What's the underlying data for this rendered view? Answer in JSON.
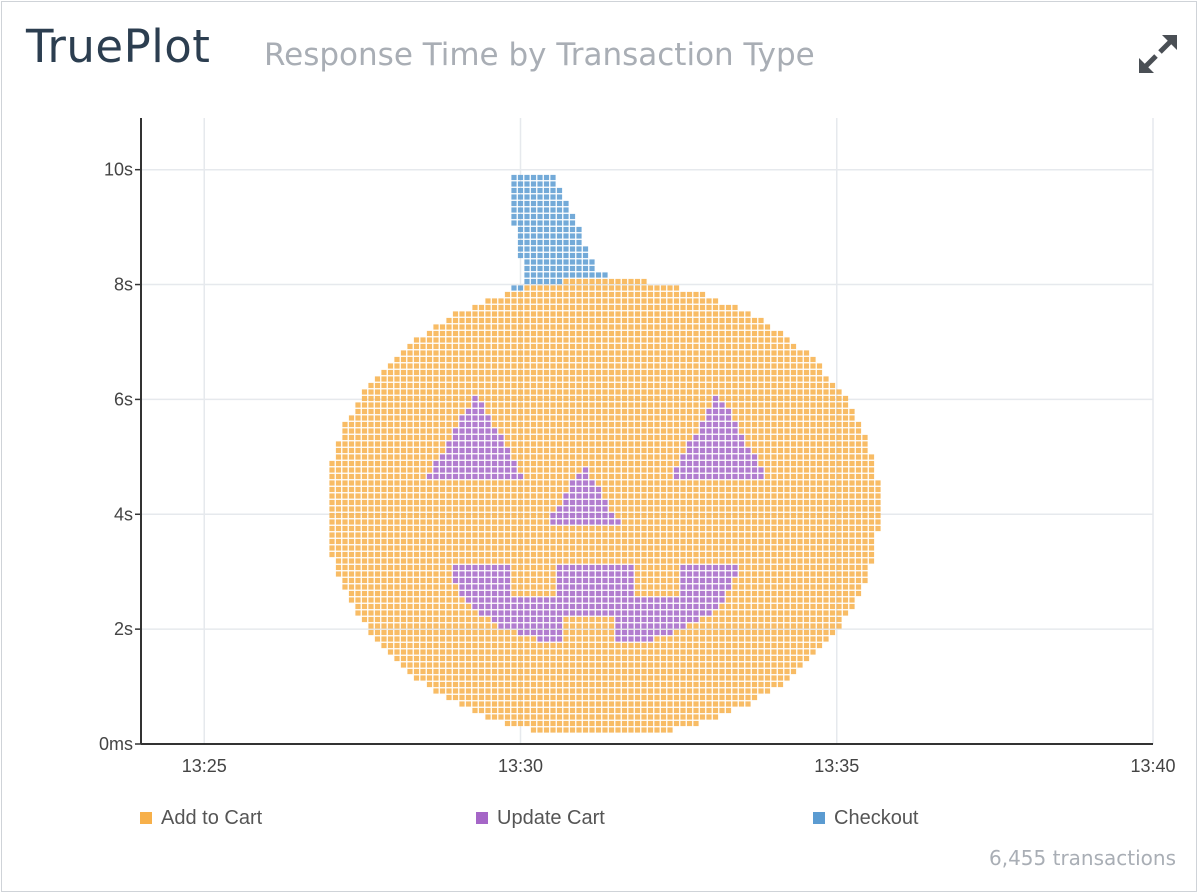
{
  "header": {
    "brand": "TruePlot",
    "subtitle": "Response Time by Transaction Type"
  },
  "footer": {
    "transactions": "6,455 transactions"
  },
  "icons": {
    "expand": "expand-arrows-icon"
  },
  "colors": {
    "add_to_cart": "#f7b04a",
    "update_cart": "#a566c7",
    "checkout": "#5b9bd1",
    "grid": "#e6e9ed",
    "axis": "#333333"
  },
  "chart_data": {
    "type": "scatter",
    "title": "Response Time by Transaction Type",
    "xlabel": "",
    "ylabel": "",
    "x_ticks": [
      "13:25",
      "13:30",
      "13:35",
      "13:40"
    ],
    "y_ticks": [
      "0ms",
      "2s",
      "4s",
      "6s",
      "8s",
      "10s"
    ],
    "xlim": [
      "13:24:00",
      "13:40:00"
    ],
    "ylim": [
      0,
      10.9
    ],
    "y_unit": "s",
    "grid": true,
    "legend_position": "bottom",
    "total_points": 6455,
    "series": [
      {
        "name": "Add to Cart",
        "color": "#f7b04a",
        "shape": "filled ellipse of points (pumpkin body)",
        "x_range": [
          "13:26:55",
          "13:35:40"
        ],
        "y_range": [
          0.2,
          8.1
        ],
        "center": {
          "x": "13:31:18",
          "y": 4.1
        },
        "radius": {
          "x_minutes": 4.38,
          "y_seconds": 4.0
        }
      },
      {
        "name": "Update Cart",
        "color": "#a566c7",
        "shape": "triangles and grin (pumpkin face)",
        "regions": [
          {
            "part": "left eye",
            "x": [
              "13:28:30",
              "13:30:05"
            ],
            "y": [
              4.6,
              6.1
            ]
          },
          {
            "part": "right eye",
            "x": [
              "13:32:20",
              "13:33:55"
            ],
            "y": [
              4.6,
              6.1
            ]
          },
          {
            "part": "nose",
            "x": [
              "13:30:25",
              "13:31:35"
            ],
            "y": [
              3.8,
              4.9
            ]
          },
          {
            "part": "mouth",
            "x": [
              "13:28:55",
              "13:33:25"
            ],
            "y": [
              1.7,
              3.1
            ]
          }
        ]
      },
      {
        "name": "Checkout",
        "color": "#5b9bd1",
        "shape": "curved stem above body",
        "x_range": [
          "13:29:50",
          "13:32:05"
        ],
        "y_range": [
          7.8,
          9.9
        ]
      }
    ]
  }
}
